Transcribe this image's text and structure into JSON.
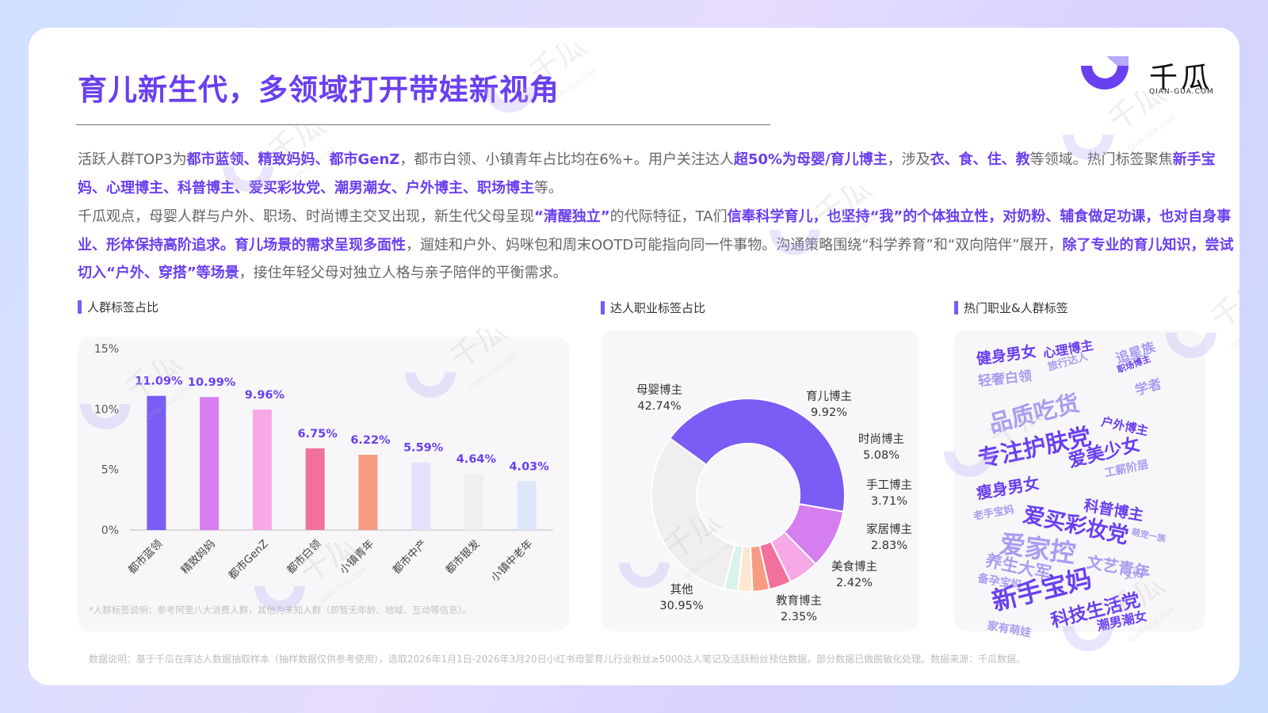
{
  "header": {
    "title": "育儿新生代，多领域打开带娃新视角",
    "logo_cn": "千瓜",
    "logo_en": "QIAN-GUA.COM"
  },
  "paragraph1": [
    {
      "t": "活跃人群TOP3为",
      "h": false
    },
    {
      "t": "都市蓝领、精致妈妈、都市GenZ",
      "h": true
    },
    {
      "t": "，都市白领、小镇青年占比均在6%+。用户关注达人",
      "h": false
    },
    {
      "t": "超50%为母婴/育儿博主",
      "h": true
    },
    {
      "t": "，涉及",
      "h": false
    },
    {
      "t": "衣、食、住、教",
      "h": true
    },
    {
      "t": "等领域。热门标签聚焦",
      "h": false
    },
    {
      "t": "新手宝妈、心理博主、科普博主、爱买彩妆党、潮男潮女、户外博主、职场博主",
      "h": true
    },
    {
      "t": "等。",
      "h": false
    }
  ],
  "paragraph2": [
    {
      "t": "千瓜观点，母婴人群与户外、职场、时尚博主交叉出现，新生代父母呈现",
      "h": false
    },
    {
      "t": "“清醒独立”",
      "h": true
    },
    {
      "t": "的代际特征，TA们",
      "h": false
    },
    {
      "t": "信奉科学育儿，也坚持“我”的个体独立性，对奶粉、辅食做足功课，也对自身事业、形体保持高阶追求。育儿场景的需求呈现多面性",
      "h": true
    },
    {
      "t": "，遛娃和户外、妈咪包和周末OOTD可能指向同一件事物。沟通策略围绕“科学养育”和“双向陪伴”展开，",
      "h": false
    },
    {
      "t": "除了专业的育儿知识，尝试切入“户外、穿搭”等场景",
      "h": true
    },
    {
      "t": "，接住年轻父母对独立人格与亲子陪伴的平衡需求。",
      "h": false
    }
  ],
  "sections": {
    "bar_title": "人群标签占比",
    "donut_title": "达人职业标签占比",
    "cloud_title": "热门职业&人群标签"
  },
  "bar_note": "*人群标签说明：参考阿里八大消费人群，其他为未知人群（即暂无年龄、地域、互动等信息）。",
  "footer": "数据说明：基于千瓜在库达人数据抽取样本（抽样数据仅供参考使用），选取2026年1月1日-2026年3月20日小红书母婴育儿行业粉丝≥5000达人笔记及活跃粉丝预估数据，部分数据已做脱敏化处理。数据来源：千瓜数据。",
  "chart_data": [
    {
      "type": "bar",
      "title": "人群标签占比",
      "categories": [
        "都市蓝领",
        "精致妈妈",
        "都市GenZ",
        "都市白领",
        "小镇青年",
        "都市中产",
        "都市银发",
        "小镇中老年"
      ],
      "values": [
        11.09,
        10.99,
        9.96,
        6.75,
        6.22,
        5.59,
        4.64,
        4.03
      ],
      "value_labels": [
        "11.09%",
        "10.99%",
        "9.96%",
        "6.75%",
        "6.22%",
        "5.59%",
        "4.64%",
        "4.03%"
      ],
      "colors": [
        "#7b5cf5",
        "#d57ef0",
        "#f7a9e6",
        "#f2719c",
        "#f79c80",
        "#e6e1fb",
        "#efefef",
        "#dde6f9"
      ],
      "yticks": [
        "0%",
        "5%",
        "10%",
        "15%"
      ],
      "ylim": [
        0,
        15
      ],
      "grid": false
    },
    {
      "type": "pie",
      "donut": true,
      "title": "达人职业标签占比",
      "slices": [
        {
          "label": "母婴博主",
          "value": 42.74,
          "value_label": "42.74%",
          "color": "#7b5cf5"
        },
        {
          "label": "育儿博主",
          "value": 9.92,
          "value_label": "9.92%",
          "color": "#d57ef0"
        },
        {
          "label": "时尚博主",
          "value": 5.08,
          "value_label": "5.08%",
          "color": "#f7a9e6"
        },
        {
          "label": "手工博主",
          "value": 3.71,
          "value_label": "3.71%",
          "color": "#f2719c"
        },
        {
          "label": "家居博主",
          "value": 2.83,
          "value_label": "2.83%",
          "color": "#f79c80"
        },
        {
          "label": "美食博主",
          "value": 2.42,
          "value_label": "2.42%",
          "color": "#fde7d2"
        },
        {
          "label": "教育博主",
          "value": 2.35,
          "value_label": "2.35%",
          "color": "#d9f3ea"
        },
        {
          "label": "其他",
          "value": 30.95,
          "value_label": "30.95%",
          "color": "#efefef"
        }
      ]
    }
  ],
  "word_cloud": [
    {
      "text": "健身男女",
      "color": "#6a3ff0"
    },
    {
      "text": "心理博主",
      "color": "#6a3ff0"
    },
    {
      "text": "追星族",
      "color": "#a99cf2"
    },
    {
      "text": "旅行达人",
      "color": "#a99cf2"
    },
    {
      "text": "轻奢白领",
      "color": "#a99cf2"
    },
    {
      "text": "职场博主",
      "color": "#6a3ff0"
    },
    {
      "text": "学者",
      "color": "#a99cf2"
    },
    {
      "text": "品质吃货",
      "color": "#a99cf2"
    },
    {
      "text": "户外博主",
      "color": "#6a3ff0"
    },
    {
      "text": "专注护肤党",
      "color": "#6a3ff0"
    },
    {
      "text": "爱美少女",
      "color": "#6a3ff0"
    },
    {
      "text": "工薪阶层",
      "color": "#a99cf2"
    },
    {
      "text": "瘦身男女",
      "color": "#6a3ff0"
    },
    {
      "text": "老手宝妈",
      "color": "#a99cf2"
    },
    {
      "text": "科普博主",
      "color": "#6a3ff0"
    },
    {
      "text": "爱买彩妆党",
      "color": "#6a3ff0"
    },
    {
      "text": "萌宠一族",
      "color": "#a99cf2"
    },
    {
      "text": "爱家控",
      "color": "#a99cf2"
    },
    {
      "text": "养生大军",
      "color": "#a99cf2"
    },
    {
      "text": "文艺青年",
      "color": "#a99cf2"
    },
    {
      "text": "备孕宝妈",
      "color": "#a99cf2"
    },
    {
      "text": "文化人",
      "color": "#a99cf2"
    },
    {
      "text": "新手宝妈",
      "color": "#6a3ff0"
    },
    {
      "text": "科技生活党",
      "color": "#6a3ff0"
    },
    {
      "text": "潮男潮女",
      "color": "#6a3ff0"
    },
    {
      "text": "家有萌娃",
      "color": "#a99cf2"
    }
  ],
  "watermark_cn": "千瓜",
  "watermark_en": "QIAN-GUA.COM"
}
